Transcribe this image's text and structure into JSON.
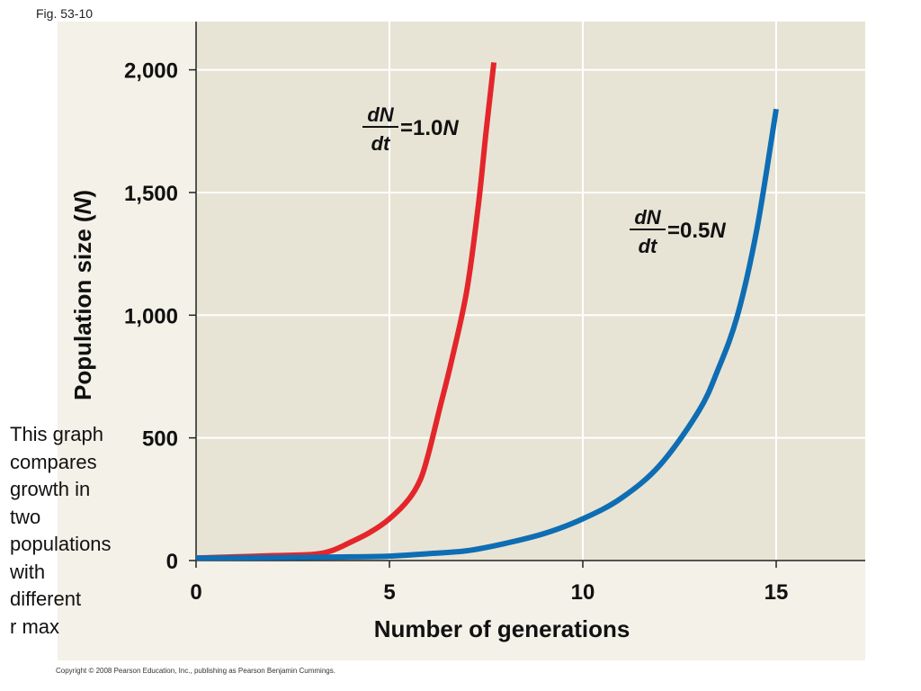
{
  "figure_label": "Fig. 53-10",
  "side_note": [
    "This graph",
    "compares",
    "growth in",
    "two",
    "populations",
    "with",
    "different",
    "r max"
  ],
  "copyright": "Copyright © 2008 Pearson Education, Inc., publishing as Pearson Benjamin Cummings.",
  "colors": {
    "panel_bg": "#f3f1e8",
    "plot_bg": "#e7e4d5",
    "grid": "#ffffff",
    "red_series": "#e3262b",
    "blue_series": "#0e6db3"
  },
  "chart_data": {
    "type": "line",
    "title": "",
    "xlabel": "Number of generations",
    "ylabel": "Population size (N)",
    "ylabel_prefix": "Population size (",
    "ylabel_var": "N",
    "ylabel_suffix": ")",
    "xlim": [
      0,
      17.3
    ],
    "ylim": [
      0,
      2200
    ],
    "x_ticks": [
      0,
      5,
      10,
      15
    ],
    "x_tick_labels": [
      "0",
      "5",
      "10",
      "15"
    ],
    "y_ticks": [
      0,
      500,
      1000,
      1500,
      2000
    ],
    "y_tick_labels": [
      "0",
      "500",
      "1,000",
      "1,500",
      "2,000"
    ],
    "grid": true,
    "series": [
      {
        "name": "dN/dt = 1.0N",
        "color": "#e3262b",
        "label_num": "dN",
        "label_den": "dt",
        "label_eq": "=",
        "label_coef": "1.0",
        "label_var": "N",
        "x": [
          0,
          1,
          2,
          3,
          3.5,
          4,
          4.5,
          5,
          5.5,
          5.8,
          6,
          6.3,
          6.6,
          7,
          7.3,
          7.5,
          7.7
        ],
        "y": [
          10,
          15,
          20,
          25,
          40,
          75,
          115,
          170,
          250,
          330,
          430,
          620,
          810,
          1100,
          1450,
          1750,
          2030
        ]
      },
      {
        "name": "dN/dt = 0.5N",
        "color": "#0e6db3",
        "label_num": "dN",
        "label_den": "dt",
        "label_eq": "=",
        "label_coef": "0.5",
        "label_var": "N",
        "x": [
          0,
          2,
          4,
          5,
          6,
          7,
          8,
          9,
          10,
          11,
          12,
          13,
          13.5,
          14,
          14.5,
          15
        ],
        "y": [
          10,
          12,
          15,
          18,
          28,
          40,
          70,
          110,
          170,
          255,
          390,
          610,
          780,
          1000,
          1350,
          1840
        ]
      }
    ]
  }
}
